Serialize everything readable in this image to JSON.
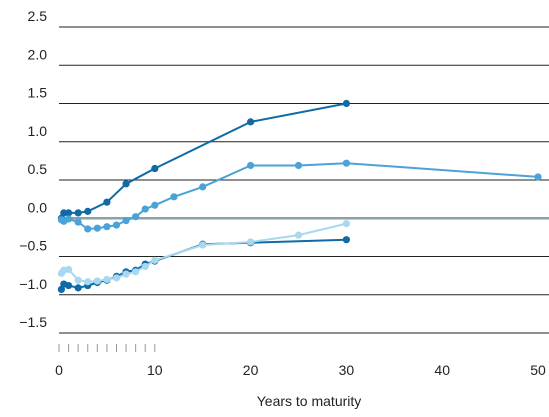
{
  "chart_data": {
    "type": "line",
    "title": "",
    "xlabel": "Years to maturity",
    "ylabel": "",
    "xlim": [
      0,
      50
    ],
    "ylim": [
      -1.5,
      2.5
    ],
    "x_ticks": [
      0,
      10,
      20,
      30,
      40,
      50
    ],
    "y_ticks": [
      2.5,
      2.0,
      1.5,
      1.0,
      0.5,
      0.0,
      -0.5,
      -1.0,
      -1.5
    ],
    "y_tick_labels": [
      "2.5",
      "2.0",
      "1.5",
      "1.0",
      "0.5",
      "0.0",
      "−0.5",
      "−1.0",
      "−1.5"
    ],
    "x_tick_labels": [
      "0",
      "10",
      "20",
      "30",
      "40",
      "50"
    ],
    "minor_x_ticks": [
      0,
      1,
      2,
      3,
      4,
      5,
      6,
      7,
      8,
      9,
      10
    ],
    "grid": "horizontal",
    "legend": "none",
    "zero_line_color": "#8ca0a8",
    "series": [
      {
        "color": "#0f6aa6",
        "x": [
          0.25,
          0.5,
          1,
          2,
          3,
          5,
          7,
          10,
          20,
          30
        ],
        "y": [
          0.0,
          0.07,
          0.07,
          0.07,
          0.09,
          0.21,
          0.45,
          0.65,
          1.26,
          1.5
        ]
      },
      {
        "color": "#4aa3d6",
        "x": [
          0.25,
          0.5,
          1,
          2,
          3,
          4,
          5,
          6,
          7,
          8,
          9,
          10,
          12,
          15,
          20,
          25,
          30,
          50
        ],
        "y": [
          -0.02,
          -0.04,
          -0.01,
          -0.05,
          -0.14,
          -0.13,
          -0.11,
          -0.09,
          -0.03,
          0.02,
          0.12,
          0.17,
          0.28,
          0.41,
          0.69,
          0.69,
          0.72,
          0.54
        ]
      },
      {
        "color": "#0f6aa6",
        "x": [
          0.25,
          0.5,
          1,
          2,
          3,
          4,
          5,
          6,
          7,
          8,
          9,
          10,
          15,
          20,
          30
        ],
        "y": [
          -0.93,
          -0.86,
          -0.88,
          -0.91,
          -0.88,
          -0.84,
          -0.81,
          -0.76,
          -0.7,
          -0.68,
          -0.6,
          -0.56,
          -0.34,
          -0.32,
          -0.28
        ]
      },
      {
        "color": "#a8d8f0",
        "x": [
          0.25,
          0.5,
          1,
          2,
          3,
          4,
          5,
          6,
          7,
          8,
          9,
          10,
          15,
          20,
          25,
          30
        ],
        "y": [
          -0.72,
          -0.68,
          -0.67,
          -0.81,
          -0.83,
          -0.82,
          -0.8,
          -0.78,
          -0.73,
          -0.7,
          -0.63,
          -0.55,
          -0.35,
          -0.31,
          -0.22,
          -0.07
        ]
      }
    ]
  }
}
